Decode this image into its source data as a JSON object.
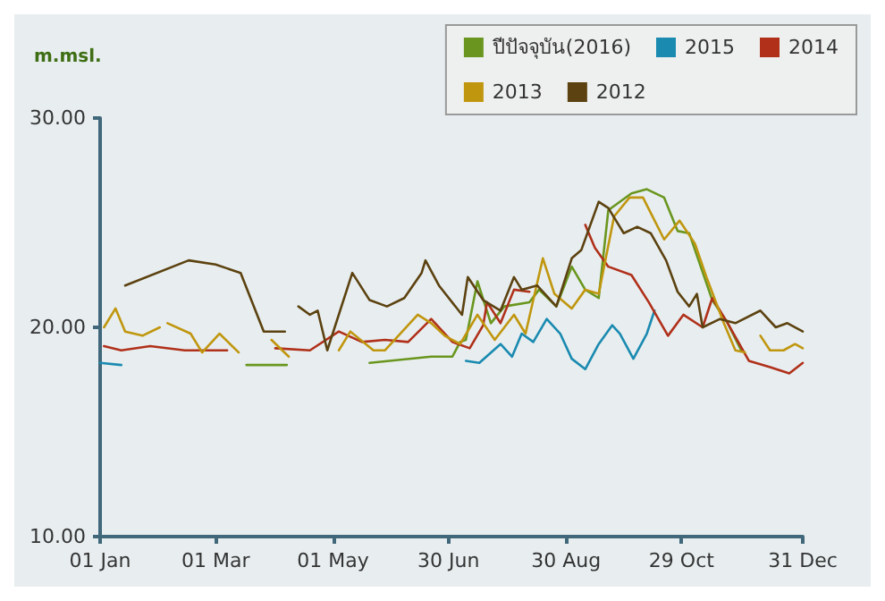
{
  "chart_data": {
    "type": "line",
    "ylabel": "m.msl.",
    "legend": "top right",
    "grid": false,
    "marker": "none",
    "xlim": [
      "--01-01",
      "--12-31"
    ],
    "xticks": [
      {
        "value": "--01-01",
        "label": "01 Jan"
      },
      {
        "value": "--03-01",
        "label": "01 Mar"
      },
      {
        "value": "--05-01",
        "label": "01 May"
      },
      {
        "value": "--06-30",
        "label": "30 Jun"
      },
      {
        "value": "--08-30",
        "label": "30 Aug"
      },
      {
        "value": "--10-29",
        "label": "29 Oct"
      },
      {
        "value": "--12-31",
        "label": "31 Dec"
      }
    ],
    "ylim": [
      10,
      30
    ],
    "yticks": [
      {
        "value": 10,
        "label": "10.00"
      },
      {
        "value": 20,
        "label": "20.00"
      },
      {
        "value": 30,
        "label": "30.00"
      }
    ],
    "series": [
      {
        "name": "ปีปัจจุบัน(2016)",
        "color": "#6a961f",
        "x": [
          "--03-17",
          "--04-07",
          "--04-28",
          "--05-20",
          "--06-21",
          "--07-02",
          "--07-06",
          "--07-09",
          "--07-15",
          "--07-22",
          "--07-29",
          "--08-11",
          "--08-16",
          "--08-25",
          "--09-02",
          "--09-09",
          "--09-16",
          "--09-21",
          "--10-03",
          "--10-11",
          "--10-20",
          "--10-27",
          "--11-02",
          "--11-08",
          "--11-14",
          "--11-22",
          "--11-29"
        ],
        "values": [
          18.2,
          18.2,
          null,
          18.3,
          18.6,
          18.6,
          19.3,
          19.4,
          22.2,
          20.2,
          21.0,
          21.2,
          21.8,
          21.0,
          22.9,
          21.8,
          21.4,
          25.6,
          26.4,
          26.6,
          26.2,
          24.6,
          24.5,
          22.9,
          21.3,
          20.2,
          18.9
        ]
      },
      {
        "name": "2015",
        "color": "#1a8ab0",
        "x": [
          "--01-01",
          "--01-12",
          "--01-21",
          "--07-09",
          "--07-16",
          "--07-27",
          "--08-02",
          "--08-07",
          "--08-13",
          "--08-20",
          "--08-27",
          "--09-02",
          "--09-09",
          "--09-16",
          "--09-23",
          "--09-27",
          "--10-04",
          "--10-11",
          "--10-15"
        ],
        "values": [
          18.3,
          18.2,
          null,
          18.4,
          18.3,
          19.2,
          18.6,
          19.7,
          19.3,
          20.4,
          19.7,
          18.5,
          18.0,
          19.2,
          20.1,
          19.7,
          18.5,
          19.7,
          20.8
        ]
      },
      {
        "name": "2014",
        "color": "#b0301a",
        "x": [
          "--01-03",
          "--01-12",
          "--01-27",
          "--02-14",
          "--03-07",
          "--03-11",
          "--04-01",
          "--04-19",
          "--05-04",
          "--05-16",
          "--05-28",
          "--06-09",
          "--06-21",
          "--07-02",
          "--07-11",
          "--07-18",
          "--07-20",
          "--07-27",
          "--08-03",
          "--08-11",
          "--08-28",
          "--09-09",
          "--09-14",
          "--09-21",
          "--10-03",
          "--10-12",
          "--10-22",
          "--10-30",
          "--11-09",
          "--11-14",
          "--11-22",
          "--12-03",
          "--12-14",
          "--12-24",
          "--12-31"
        ],
        "values": [
          19.1,
          18.9,
          19.1,
          18.9,
          18.9,
          null,
          19.0,
          18.9,
          19.8,
          19.3,
          19.4,
          19.3,
          20.4,
          19.3,
          19.0,
          20.1,
          21.2,
          20.2,
          21.8,
          21.7,
          null,
          24.9,
          23.8,
          22.9,
          22.5,
          21.2,
          19.6,
          20.6,
          20.0,
          21.4,
          20.2,
          18.4,
          18.1,
          17.8,
          18.3
        ]
      },
      {
        "name": "2013",
        "color": "#c0960e",
        "x": [
          "--01-03",
          "--01-09",
          "--01-14",
          "--01-23",
          "--02-01",
          "--02-03",
          "--02-05",
          "--02-17",
          "--02-23",
          "--03-03",
          "--03-13",
          "--03-26",
          "--03-30",
          "--04-08",
          "--04-20",
          "--05-04",
          "--05-10",
          "--05-22",
          "--05-28",
          "--06-14",
          "--06-21",
          "--06-28",
          "--07-06",
          "--07-15",
          "--07-24",
          "--08-03",
          "--08-09",
          "--08-18",
          "--08-24",
          "--09-02",
          "--09-09",
          "--09-16",
          "--09-24",
          "--10-02",
          "--10-09",
          "--10-20",
          "--10-28",
          "--11-05",
          "--11-11",
          "--11-20",
          "--11-26",
          "--12-01",
          "--12-05",
          "--12-09",
          "--12-14",
          "--12-21",
          "--12-27",
          "--12-31"
        ],
        "values": [
          20.0,
          20.9,
          19.8,
          19.6,
          20.0,
          null,
          20.2,
          19.7,
          18.8,
          19.7,
          18.8,
          null,
          19.4,
          18.6,
          null,
          18.9,
          19.8,
          18.9,
          18.9,
          20.6,
          20.2,
          19.6,
          19.2,
          20.6,
          19.4,
          20.6,
          19.7,
          23.3,
          21.6,
          20.9,
          21.8,
          21.6,
          25.3,
          26.2,
          26.2,
          24.2,
          25.1,
          24.0,
          22.4,
          20.2,
          18.9,
          18.8,
          null,
          19.6,
          18.9,
          18.9,
          19.2,
          19.0
        ]
      },
      {
        "name": "2012",
        "color": "#5c4210",
        "x": [
          "--01-14",
          "--02-16",
          "--03-01",
          "--03-14",
          "--03-26",
          "--04-06",
          "--04-10",
          "--04-13",
          "--04-19",
          "--04-23",
          "--04-28",
          "--05-11",
          "--05-20",
          "--05-29",
          "--06-07",
          "--06-16",
          "--06-18",
          "--06-25",
          "--07-07",
          "--07-10",
          "--07-18",
          "--07-27",
          "--08-03",
          "--08-07",
          "--08-15",
          "--08-25",
          "--09-02",
          "--09-07",
          "--09-16",
          "--09-21",
          "--09-29",
          "--10-06",
          "--10-13",
          "--10-21",
          "--10-27",
          "--11-02",
          "--11-06",
          "--11-09",
          "--11-18",
          "--11-26",
          "--12-09",
          "--12-17",
          "--12-23",
          "--12-31"
        ],
        "values": [
          22.0,
          23.2,
          23.0,
          22.6,
          19.8,
          19.8,
          null,
          21.0,
          20.6,
          20.8,
          18.9,
          22.6,
          21.3,
          21.0,
          21.4,
          22.6,
          23.2,
          22.0,
          20.6,
          22.4,
          21.3,
          20.8,
          22.4,
          21.8,
          22.0,
          21.0,
          23.3,
          23.7,
          26.0,
          25.7,
          24.5,
          24.8,
          24.5,
          23.2,
          21.7,
          21.0,
          21.6,
          20.0,
          20.4,
          20.2,
          20.8,
          20.0,
          20.2,
          19.8
        ]
      }
    ]
  }
}
